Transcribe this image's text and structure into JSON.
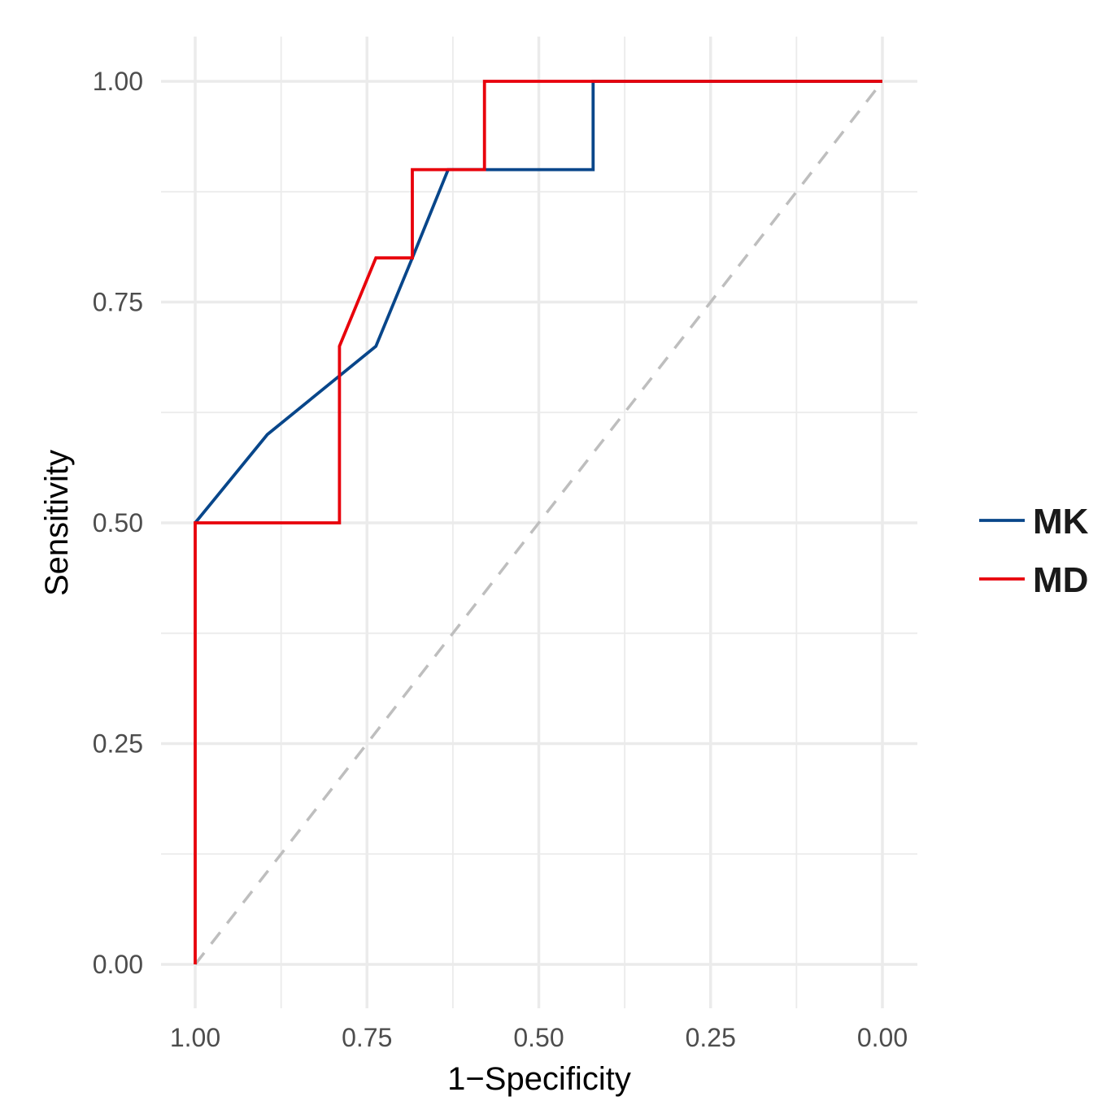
{
  "chart_data": {
    "type": "line",
    "title": "",
    "xlabel": "1−Specificity",
    "ylabel": "Sensitivity",
    "xlim": [
      1.0,
      0.0
    ],
    "ylim": [
      0.0,
      1.0
    ],
    "x_reversed": true,
    "grid": true,
    "x_ticks": [
      "1.00",
      "0.75",
      "0.50",
      "0.25",
      "0.00"
    ],
    "x_tick_values": [
      1.0,
      0.75,
      0.5,
      0.25,
      0.0
    ],
    "y_ticks": [
      "0.00",
      "0.25",
      "0.50",
      "0.75",
      "1.00"
    ],
    "y_tick_values": [
      0.0,
      0.25,
      0.5,
      0.75,
      1.0
    ],
    "legend_position": "right",
    "reference_line": {
      "x": [
        1.0,
        0.0
      ],
      "y": [
        0.0,
        1.0
      ],
      "style": "dashed",
      "color": "#bebebe"
    },
    "series": [
      {
        "name": "MK",
        "color": "#08468a",
        "x": [
          1.0,
          0.895,
          0.895,
          0.737,
          0.737,
          0.684,
          0.684,
          0.632,
          0.632,
          0.421,
          0.421,
          0.0
        ],
        "y": [
          0.5,
          0.6,
          0.6,
          0.7,
          0.7,
          0.8,
          0.8,
          0.9,
          0.9,
          0.9,
          1.0,
          1.0
        ]
      },
      {
        "name": "MD",
        "color": "#e8000b",
        "x": [
          1.0,
          1.0,
          0.79,
          0.79,
          0.737,
          0.684,
          0.684,
          0.579,
          0.579,
          0.0
        ],
        "y": [
          0.0,
          0.5,
          0.5,
          0.7,
          0.8,
          0.8,
          0.9,
          0.9,
          1.0,
          1.0
        ]
      }
    ]
  }
}
